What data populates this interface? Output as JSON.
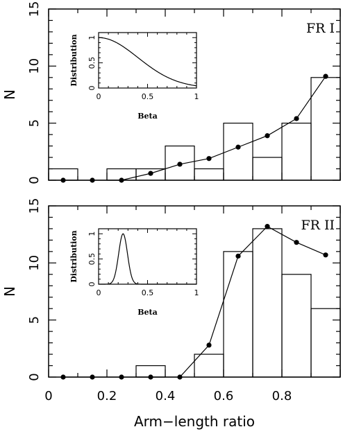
{
  "chart_data": [
    {
      "type": "bar",
      "panel_label": "FR I",
      "xlabel": "Arm−length ratio",
      "ylabel": "N",
      "xlim": [
        0,
        1
      ],
      "ylim": [
        0,
        15
      ],
      "x_ticks": [
        "0",
        "0.2",
        "0.4",
        "0.6",
        "0.8"
      ],
      "y_ticks": [
        "0",
        "5",
        "10",
        "15"
      ],
      "bins": [
        0.0,
        0.1,
        0.2,
        0.3,
        0.4,
        0.5,
        0.6,
        0.7,
        0.8,
        0.9,
        1.0
      ],
      "histogram_counts": [
        1,
        0,
        1,
        1,
        3,
        1,
        5,
        2,
        5,
        9
      ],
      "model_points": {
        "x": [
          0.05,
          0.15,
          0.25,
          0.35,
          0.45,
          0.55,
          0.65,
          0.75,
          0.85,
          0.95
        ],
        "y": [
          0,
          0,
          0,
          0.6,
          1.4,
          1.9,
          2.9,
          3.9,
          5.4,
          9.1
        ]
      },
      "inset": {
        "type": "line",
        "xlabel": "Beta",
        "ylabel": "Distribution",
        "xlim": [
          0,
          1
        ],
        "ylim": [
          0,
          1.1
        ],
        "x_ticks": [
          "0",
          "0.5",
          "1"
        ],
        "y_ticks": [
          "0",
          "0.5",
          "1"
        ],
        "curve": {
          "kind": "half-gaussian",
          "mean": 0,
          "sigma": 0.4
        }
      }
    },
    {
      "type": "bar",
      "panel_label": "FR II",
      "xlabel": "Arm−length ratio",
      "ylabel": "N",
      "xlim": [
        0,
        1
      ],
      "ylim": [
        0,
        15
      ],
      "x_ticks": [
        "0",
        "0.2",
        "0.4",
        "0.6",
        "0.8"
      ],
      "y_ticks": [
        "0",
        "5",
        "10",
        "15"
      ],
      "bins": [
        0.0,
        0.1,
        0.2,
        0.3,
        0.4,
        0.5,
        0.6,
        0.7,
        0.8,
        0.9,
        1.0
      ],
      "histogram_counts": [
        0,
        0,
        0,
        1,
        0,
        2,
        11,
        13,
        9,
        6
      ],
      "model_points": {
        "x": [
          0.05,
          0.15,
          0.25,
          0.35,
          0.45,
          0.55,
          0.65,
          0.75,
          0.85,
          0.95
        ],
        "y": [
          0,
          0,
          0,
          0,
          0,
          2.8,
          10.6,
          13.2,
          11.8,
          10.7
        ]
      },
      "inset": {
        "type": "line",
        "xlabel": "Beta",
        "ylabel": "Distribution",
        "xlim": [
          0,
          1
        ],
        "ylim": [
          0,
          1.1
        ],
        "x_ticks": [
          "0",
          "0.5",
          "1"
        ],
        "y_ticks": [
          "0",
          "0.5",
          "1"
        ],
        "curve": {
          "kind": "gaussian",
          "mean": 0.25,
          "sigma": 0.045
        }
      }
    }
  ]
}
